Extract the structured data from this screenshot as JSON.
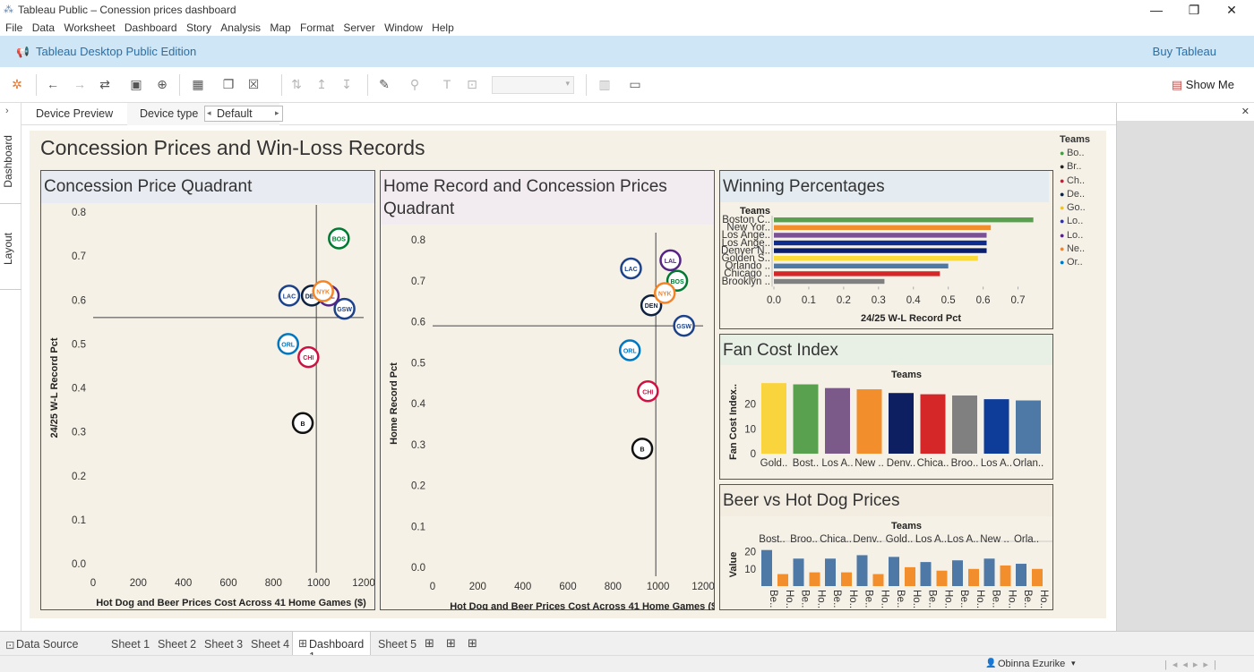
{
  "window": {
    "title": "Tableau Public – Conession prices dashboard",
    "min": "—",
    "max": "❐",
    "close": "✕"
  },
  "menu": [
    "File",
    "Data",
    "Worksheet",
    "Dashboard",
    "Story",
    "Analysis",
    "Map",
    "Format",
    "Server",
    "Window",
    "Help"
  ],
  "edition": {
    "label": "Tableau Desktop Public Edition",
    "buy": "Buy Tableau"
  },
  "toolbar": {
    "show_me": "Show Me"
  },
  "left_tabs": {
    "dashboard": "Dashboard",
    "layout": "Layout"
  },
  "device": {
    "preview": "Device Preview",
    "type_label": "Device type",
    "type_value": "Default"
  },
  "dashboard": {
    "title": "Concession Prices and Win-Loss Records"
  },
  "legend": {
    "title": "Teams",
    "items": [
      "Bo..",
      "Br..",
      "Ch..",
      "De..",
      "Go..",
      "Lo..",
      "Lo..",
      "Ne..",
      "Or.."
    ],
    "colors": [
      "#4a9a4a",
      "#222222",
      "#c81e3a",
      "#0d2240",
      "#f5c518",
      "#333399",
      "#552583",
      "#f58426",
      "#0077c0"
    ]
  },
  "sheets": {
    "data_source": "Data Source",
    "tabs": [
      "Sheet 1",
      "Sheet 2",
      "Sheet 3",
      "Sheet 4",
      "Dashboard 1",
      "Sheet 5"
    ],
    "active": "Dashboard 1"
  },
  "status": {
    "user": "Obinna Ezurike"
  },
  "chart_data": [
    {
      "type": "scatter",
      "title": "Concession Price Quadrant",
      "xlabel": "Hot Dog and Beer Prices Cost Across 41 Home Games ($)",
      "ylabel": "24/25 W-L Record Pct",
      "xlim": [
        0,
        1200
      ],
      "ylim": [
        0,
        0.8
      ],
      "xticks": [
        "0",
        "200",
        "400",
        "600",
        "800",
        "1000",
        "1200"
      ],
      "yticks": [
        "0.0",
        "0.1",
        "0.2",
        "0.3",
        "0.4",
        "0.5",
        "0.6",
        "0.7",
        "0.8"
      ],
      "ref_x": 990,
      "ref_y": 0.56,
      "points": [
        {
          "team": "Boston Celtics",
          "x": 1090,
          "y": 0.74,
          "color": "#007a33",
          "logo": "BOS"
        },
        {
          "team": "Brooklyn Nets",
          "x": 930,
          "y": 0.32,
          "color": "#111111",
          "logo": "B"
        },
        {
          "team": "Chicago Bulls",
          "x": 955,
          "y": 0.47,
          "color": "#ce1141",
          "logo": "CHI"
        },
        {
          "team": "Denver Nuggets",
          "x": 970,
          "y": 0.61,
          "color": "#0e2240",
          "logo": "DEN"
        },
        {
          "team": "Golden State Warriors",
          "x": 1115,
          "y": 0.58,
          "color": "#1d428a",
          "logo": "GSW"
        },
        {
          "team": "LA Clippers",
          "x": 870,
          "y": 0.61,
          "color": "#1d428a",
          "logo": "LAC"
        },
        {
          "team": "Los Angeles Lakers",
          "x": 1045,
          "y": 0.61,
          "color": "#552583",
          "logo": "LAL"
        },
        {
          "team": "New York Knicks",
          "x": 1020,
          "y": 0.62,
          "color": "#f58426",
          "logo": "NYK"
        },
        {
          "team": "Orlando Magic",
          "x": 865,
          "y": 0.5,
          "color": "#0077c0",
          "logo": "ORL"
        }
      ]
    },
    {
      "type": "scatter",
      "title": "Home Record and Concession Prices Quadrant",
      "xlabel": "Hot Dog and Beer Prices Cost Across 41 Home Games ($)",
      "ylabel": "Home Record Pct",
      "xlim": [
        0,
        1200
      ],
      "ylim": [
        0,
        0.8
      ],
      "xticks": [
        "0",
        "200",
        "400",
        "600",
        "800",
        "1000",
        "1200"
      ],
      "yticks": [
        "0.0",
        "0.1",
        "0.2",
        "0.3",
        "0.4",
        "0.5",
        "0.6",
        "0.7",
        "0.8"
      ],
      "ref_x": 990,
      "ref_y": 0.59,
      "points": [
        {
          "team": "Boston Celtics",
          "x": 1085,
          "y": 0.7,
          "color": "#007a33",
          "logo": "BOS"
        },
        {
          "team": "Brooklyn Nets",
          "x": 930,
          "y": 0.29,
          "color": "#111111",
          "logo": "B"
        },
        {
          "team": "Chicago Bulls",
          "x": 955,
          "y": 0.43,
          "color": "#ce1141",
          "logo": "CHI"
        },
        {
          "team": "Denver Nuggets",
          "x": 970,
          "y": 0.64,
          "color": "#0e2240",
          "logo": "DEN"
        },
        {
          "team": "Golden State Warriors",
          "x": 1115,
          "y": 0.59,
          "color": "#1d428a",
          "logo": "GSW"
        },
        {
          "team": "LA Clippers",
          "x": 880,
          "y": 0.73,
          "color": "#1d428a",
          "logo": "LAC"
        },
        {
          "team": "Los Angeles Lakers",
          "x": 1055,
          "y": 0.75,
          "color": "#552583",
          "logo": "LAL"
        },
        {
          "team": "New York Knicks",
          "x": 1030,
          "y": 0.67,
          "color": "#f58426",
          "logo": "NYK"
        },
        {
          "team": "Orlando Magic",
          "x": 875,
          "y": 0.53,
          "color": "#0077c0",
          "logo": "ORL"
        }
      ]
    },
    {
      "type": "bar",
      "orientation": "horizontal",
      "title": "Winning Percentages",
      "header": "Teams",
      "xlabel": "24/25 W-L Record Pct",
      "xlim": [
        0,
        0.75
      ],
      "xticks": [
        "0.0",
        "0.1",
        "0.2",
        "0.3",
        "0.4",
        "0.5",
        "0.6",
        "0.7"
      ],
      "categories": [
        "Boston C..",
        "New Yor..",
        "Los Ange..",
        "Los Ange..",
        "Denver N..",
        "Golden S..",
        "Orlando ..",
        "Chicago ..",
        "Brooklyn .."
      ],
      "values": [
        0.744,
        0.622,
        0.61,
        0.61,
        0.61,
        0.585,
        0.5,
        0.476,
        0.317
      ],
      "colors": [
        "#59a14f",
        "#f28e2b",
        "#7a5195",
        "#0d2d8f",
        "#0a1f6b",
        "#fadb3a",
        "#4e79a7",
        "#d62728",
        "#808080"
      ]
    },
    {
      "type": "bar",
      "title": "Fan Cost Index",
      "header": "Teams",
      "ylabel": "Fan Cost Index..",
      "ylim": [
        0,
        30
      ],
      "yticks": [
        "0",
        "10",
        "20"
      ],
      "categories": [
        "Gold..",
        "Bost..",
        "Los A..",
        "New ..",
        "Denv..",
        "Chica..",
        "Broo..",
        "Los A..",
        "Orlan.."
      ],
      "values": [
        28.5,
        28.0,
        26.5,
        26.0,
        24.5,
        24.0,
        23.5,
        22.0,
        21.5
      ],
      "colors": [
        "#f9d43c",
        "#59a14f",
        "#7b5a8a",
        "#f28e2b",
        "#0d1f60",
        "#d62728",
        "#808080",
        "#0d3c99",
        "#4e79a7"
      ]
    },
    {
      "type": "bar",
      "title": "Beer vs Hot Dog Prices",
      "header": "Teams",
      "ylabel": "Value",
      "ylim": [
        0,
        25
      ],
      "yticks": [
        "10",
        "20"
      ],
      "categories": [
        "Bost..",
        "Broo..",
        "Chica..",
        "Denv..",
        "Gold..",
        "Los A..",
        "Los A..",
        "New ..",
        "Orla.."
      ],
      "sub_labels": [
        "Be..",
        "Ho.."
      ],
      "series": [
        {
          "name": "Beer",
          "values": [
            21,
            16,
            16,
            18,
            17,
            14,
            15,
            16,
            13
          ],
          "color": "#4e79a7"
        },
        {
          "name": "Hot Dog",
          "values": [
            7,
            8,
            8,
            7,
            11,
            9,
            10,
            12,
            10
          ],
          "color": "#f28e2b"
        }
      ]
    }
  ]
}
